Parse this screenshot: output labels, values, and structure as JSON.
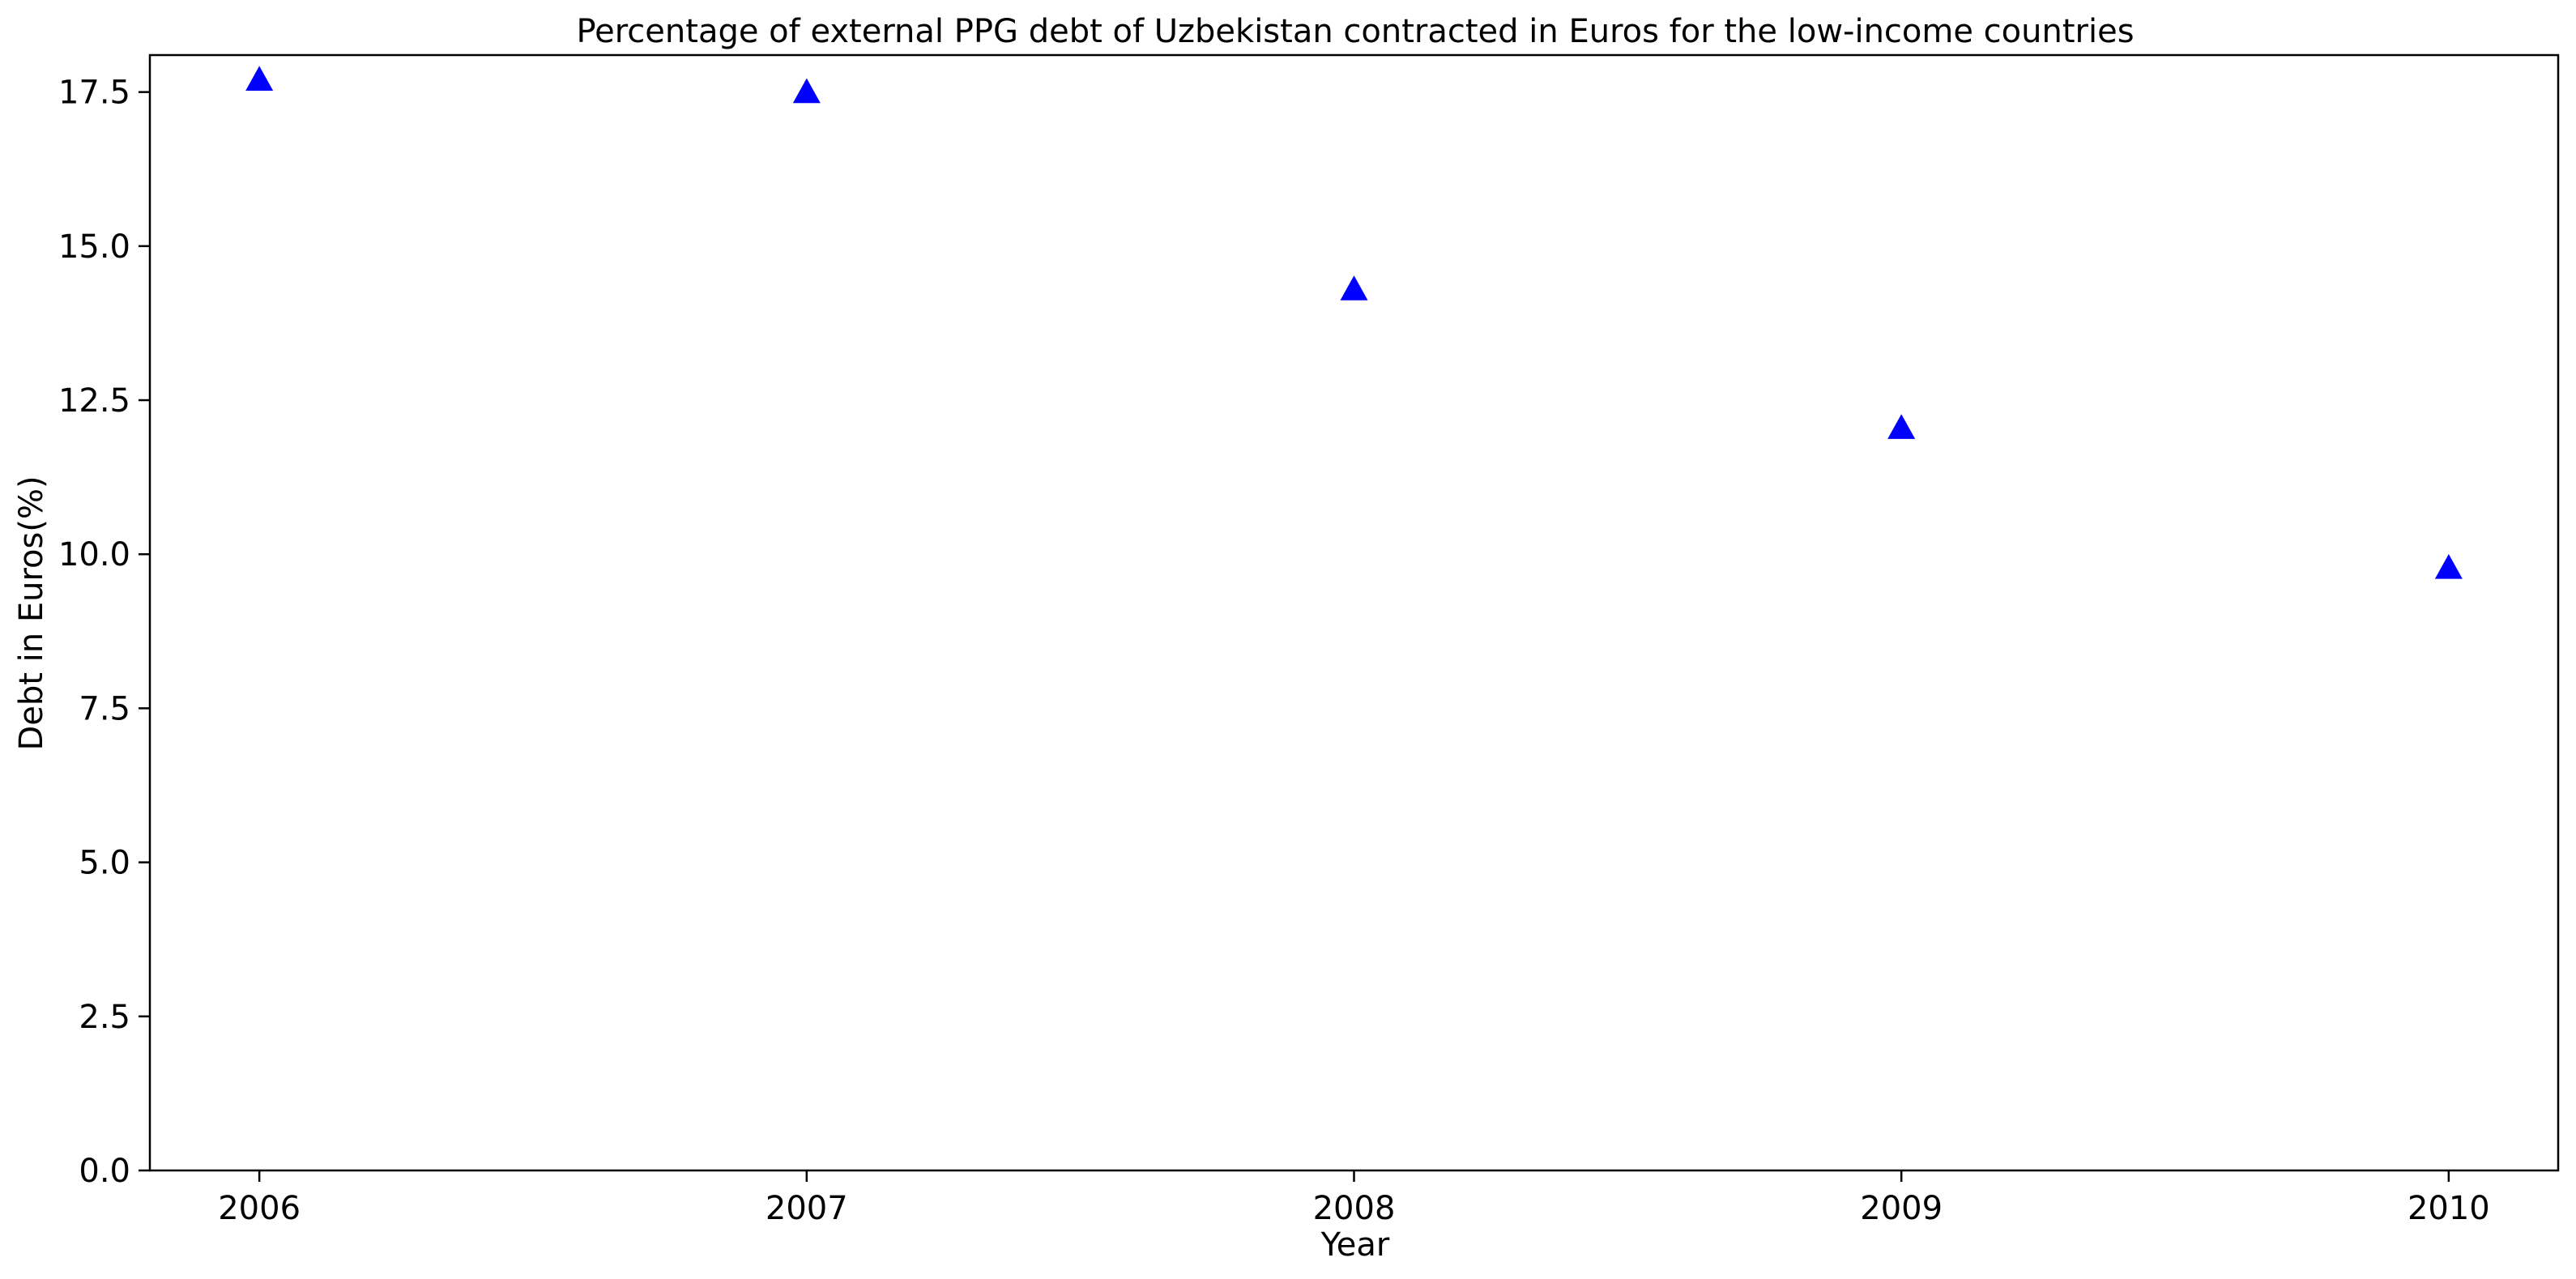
{
  "chart_data": {
    "type": "scatter",
    "title": "Percentage of external PPG debt of Uzbekistan contracted in Euros for the low-income countries",
    "xlabel": "Year",
    "ylabel": "Debt in Euros(%)",
    "x": [
      2006,
      2007,
      2008,
      2009,
      2010
    ],
    "y": [
      17.7,
      17.5,
      14.3,
      12.05,
      9.78
    ],
    "x_ticks": [
      "2006",
      "2007",
      "2008",
      "2009",
      "2010"
    ],
    "y_ticks": [
      "0.0",
      "2.5",
      "5.0",
      "7.5",
      "10.0",
      "12.5",
      "15.0",
      "17.5"
    ],
    "xlim": [
      2005.8,
      2010.2
    ],
    "ylim": [
      0,
      18.1
    ],
    "marker": "triangle-up",
    "marker_color": "#0000ff",
    "grid": false,
    "legend": false
  }
}
